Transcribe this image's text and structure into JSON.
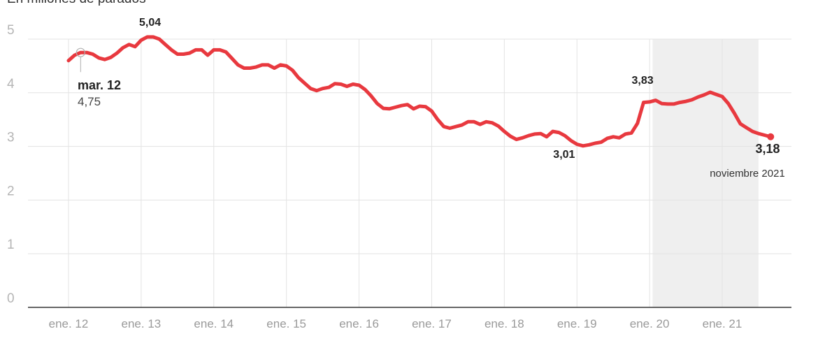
{
  "chart_data": {
    "type": "line",
    "subtitle": "En millones de parados",
    "y_ticks": [
      "0",
      "1",
      "2",
      "3",
      "4",
      "5"
    ],
    "ylim": [
      0,
      5.1
    ],
    "x_tick_labels": [
      "ene. 12",
      "ene. 13",
      "ene. 14",
      "ene. 15",
      "ene. 16",
      "ene. 17",
      "ene. 18",
      "ene. 19",
      "ene. 20",
      "ene. 21"
    ],
    "x_tick_months": [
      0,
      12,
      24,
      36,
      48,
      60,
      72,
      84,
      96,
      108
    ],
    "xlim_months": [
      -3,
      118
    ],
    "highlight_months": [
      96.5,
      114
    ],
    "grid": true,
    "series": [
      {
        "values": [
          4.6,
          4.7,
          4.75,
          4.75,
          4.72,
          4.65,
          4.62,
          4.66,
          4.74,
          4.84,
          4.9,
          4.86,
          4.98,
          5.04,
          5.04,
          5.0,
          4.9,
          4.8,
          4.72,
          4.72,
          4.74,
          4.8,
          4.8,
          4.7,
          4.8,
          4.8,
          4.76,
          4.64,
          4.52,
          4.46,
          4.46,
          4.48,
          4.52,
          4.52,
          4.46,
          4.52,
          4.5,
          4.42,
          4.28,
          4.18,
          4.08,
          4.04,
          4.08,
          4.1,
          4.17,
          4.16,
          4.12,
          4.16,
          4.14,
          4.06,
          3.94,
          3.8,
          3.71,
          3.7,
          3.73,
          3.76,
          3.78,
          3.7,
          3.75,
          3.74,
          3.66,
          3.5,
          3.37,
          3.34,
          3.37,
          3.4,
          3.46,
          3.46,
          3.41,
          3.46,
          3.44,
          3.38,
          3.28,
          3.19,
          3.13,
          3.16,
          3.2,
          3.23,
          3.24,
          3.18,
          3.28,
          3.26,
          3.2,
          3.11,
          3.04,
          3.01,
          3.03,
          3.06,
          3.08,
          3.15,
          3.18,
          3.16,
          3.23,
          3.25,
          3.43,
          3.82,
          3.83,
          3.86,
          3.8,
          3.79,
          3.79,
          3.82,
          3.84,
          3.87,
          3.92,
          3.96,
          4.01,
          3.97,
          3.93,
          3.8,
          3.62,
          3.42,
          3.35,
          3.28,
          3.24,
          3.21,
          3.18
        ],
        "color": "#e8393f"
      }
    ],
    "annotations": [
      {
        "month": 2,
        "value": 4.75,
        "label": "mar. 12",
        "value_label": "4,75"
      },
      {
        "month": 13,
        "value": 5.04,
        "value_label": "5,04"
      },
      {
        "month": 85,
        "value": 3.01,
        "value_label": "3,01"
      },
      {
        "month": 96,
        "value": 3.83,
        "value_label": "3,83"
      },
      {
        "month": 118,
        "value": 3.18,
        "value_label": "3,18",
        "label": "noviembre 2021"
      }
    ],
    "colors": {
      "line": "#e8393f",
      "grid": "#e3e3e3",
      "axis": "#333333",
      "tick_text": "#b5b5b5",
      "x_tick_text": "#9a9a9a",
      "highlight": "#efefef"
    }
  }
}
